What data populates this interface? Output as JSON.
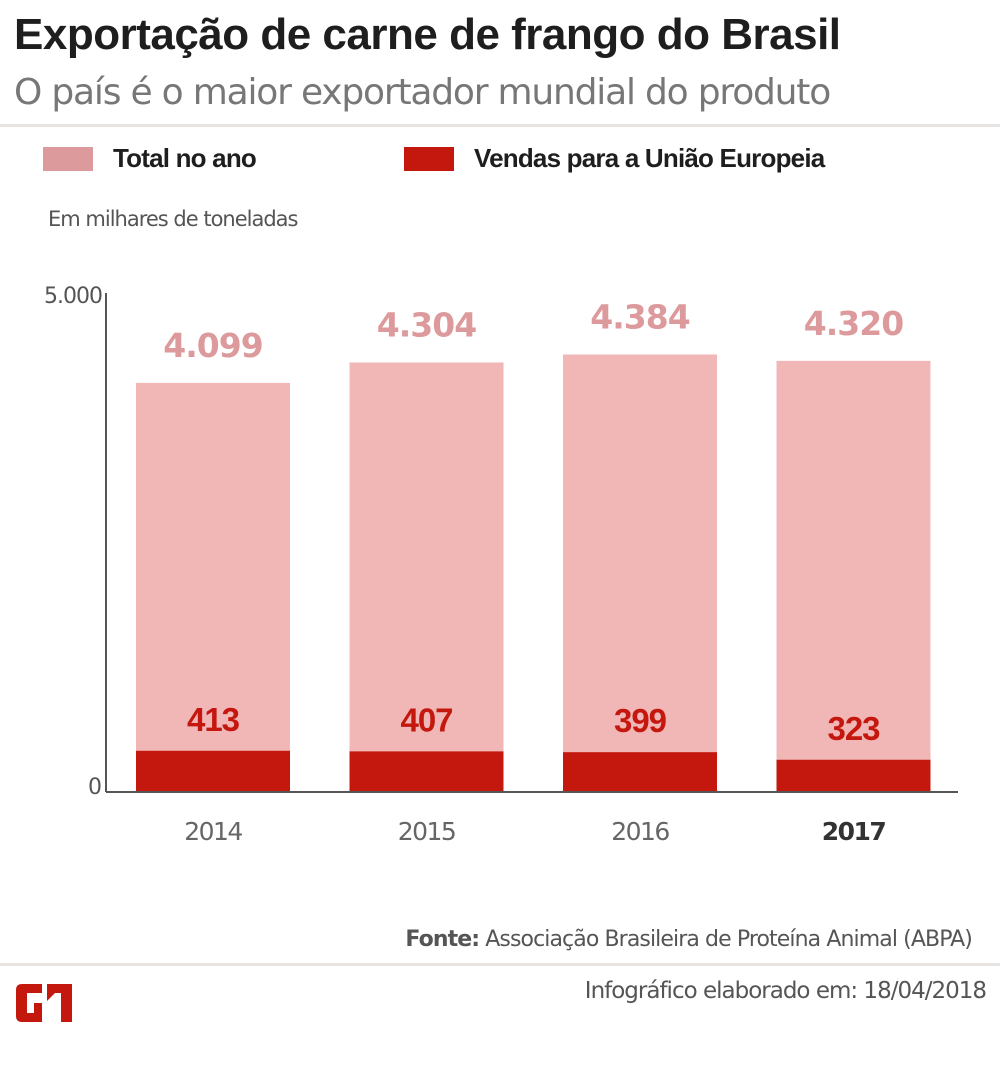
{
  "header": {
    "title": "Exportação de carne de frango do Brasil",
    "subtitle": "O país é o maior exportador mundial do produto"
  },
  "legend": [
    {
      "label": "Total no ano",
      "color": "#dd9a9c"
    },
    {
      "label": "Vendas para a União Europeia",
      "color": "#c4180f"
    }
  ],
  "unit_label": "Em milhares de toneladas",
  "footer": {
    "source_label": "Fonte:",
    "source_text": " Associação Brasileira de Proteína Animal (ABPA)",
    "date_text": "Infográfico elaborado em: 18/04/2018",
    "logo_text": "G1",
    "logo_color": "#c4180f"
  },
  "chart_data": {
    "type": "bar",
    "title": "Exportação de carne de frango do Brasil",
    "subtitle": "O país é o maior exportador mundial do produto",
    "xlabel": "",
    "ylabel": "Em milhares de toneladas",
    "categories": [
      "2014",
      "2015",
      "2016",
      "2017"
    ],
    "highlight_category": "2017",
    "series": [
      {
        "name": "Total no ano",
        "values": [
          4099,
          4304,
          4384,
          4320
        ],
        "labels": [
          "4.099",
          "4.304",
          "4.384",
          "4.320"
        ],
        "color": "#f1b7b7",
        "label_color": "#dd9a9c"
      },
      {
        "name": "Vendas para a União Europeia",
        "values": [
          413,
          407,
          399,
          323
        ],
        "labels": [
          "413",
          "407",
          "399",
          "323"
        ],
        "color": "#c4180f",
        "label_color": "#c4180f"
      }
    ],
    "ylim": [
      0,
      5000
    ],
    "yticks": [
      "0",
      "5.000"
    ],
    "grid": false,
    "legend_position": "top-left",
    "overlay": true
  }
}
